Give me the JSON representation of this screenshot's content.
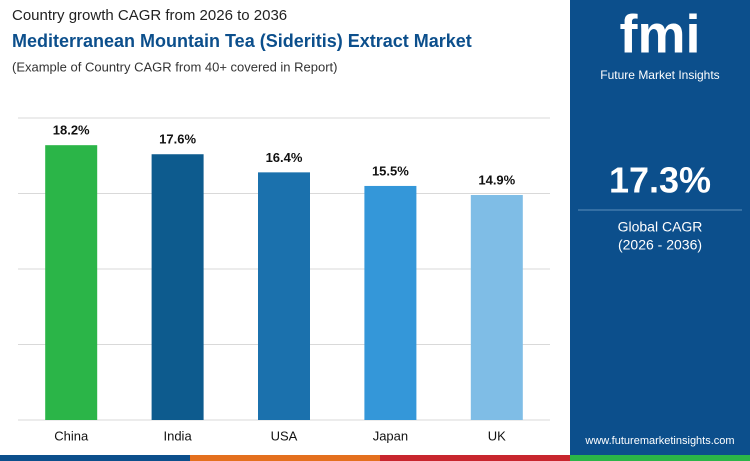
{
  "chart_data": {
    "type": "bar",
    "supertitle": "Country growth CAGR from 2026 to 2036",
    "title": "Mediterranean Mountain Tea (Sideritis) Extract Market",
    "subtitle": "(Example of Country CAGR from 40+ covered in Report)",
    "categories": [
      "China",
      "India",
      "USA",
      "Japan",
      "UK"
    ],
    "values": [
      18.2,
      17.6,
      16.4,
      15.5,
      14.9
    ],
    "value_labels": [
      "18.2%",
      "17.6%",
      "16.4%",
      "15.5%",
      "14.9%"
    ],
    "colors": [
      "#2bb548",
      "#0d5b8e",
      "#1b71ad",
      "#3497d9",
      "#7fbde6"
    ],
    "ylim": [
      0,
      20
    ],
    "yticks": [
      0,
      5,
      10,
      15,
      20
    ],
    "grid": true
  },
  "panel": {
    "logo": "fmi",
    "brand": "Future Market Insights",
    "stat": "17.3%",
    "stat_label": "Global CAGR",
    "period": "(2026 - 2036)",
    "website": "www.futuremarketinsights.com"
  }
}
